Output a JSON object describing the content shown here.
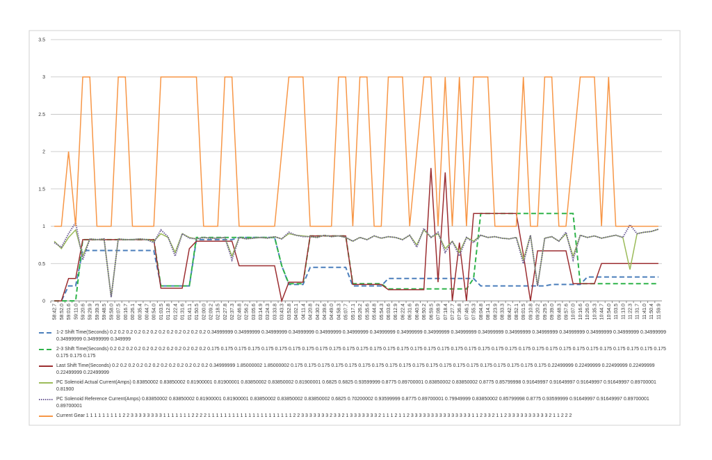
{
  "chart_data": {
    "type": "line",
    "categories": [
      "58:42.7",
      "58:52.0",
      "59:01.6",
      "59:11.0",
      "59:20.6",
      "59:29.9",
      "59:39.3",
      "59:48.5",
      "59:58.0",
      "00:07.5",
      "00:16.7",
      "00:26.1",
      "00:35.4",
      "00:44.7",
      "00:54.0",
      "01:03.5",
      "01:12.8",
      "01:22.4",
      "01:31.6",
      "01:41.1",
      "01:50.5",
      "02:00.0",
      "02:09.2",
      "02:18.5",
      "02:27.8",
      "02:37.3",
      "02:46.8",
      "02:56.2",
      "03:05.6",
      "03:14.9",
      "03:24.3",
      "03:33.8",
      "03:43.3",
      "03:52.8",
      "04:02.1",
      "04:11.4",
      "04:20.8",
      "04:30.2",
      "04:39.6",
      "04:49.0",
      "04:58.3",
      "05:07.7",
      "05:17.1",
      "05:26.2",
      "05:35.6",
      "05:44.8",
      "05:54.3",
      "06:03.6",
      "06:12.9",
      "06:22.4",
      "06:31.6",
      "06:40.9",
      "06:50.2",
      "06:59.5",
      "07:08.9",
      "07:18.4",
      "07:27.7",
      "07:36.8",
      "07:46.1",
      "07:55.3",
      "08:04.8",
      "08:14.1",
      "08:23.9",
      "08:33.3",
      "08:42.7",
      "08:52.1",
      "09:01.5",
      "09:10.8",
      "09:20.2",
      "09:29.5",
      "09:39.0",
      "09:48.3",
      "09:57.6",
      "10:07.0",
      "10:16.6",
      "10:26.0",
      "10:35.3",
      "10:44.7",
      "10:54.0",
      "11:03.5",
      "11:13.0",
      "11:22.3",
      "11:31.7",
      "11:41.0",
      "11:50.4",
      "11:59.9"
    ],
    "ylim": [
      0,
      3.5
    ],
    "yticks": [
      0,
      0.5,
      1,
      1.5,
      2,
      2.5,
      3,
      3.5
    ],
    "grid": true,
    "series": [
      {
        "name": "1-2 Shift Time(Seconds) 0.2 0.2 0.2 0.2 0.2 0.2 0.2 0.2 0.2 0.2 0.2 0.2 0.34999999 0.34999999 0.34999999 0.34999999 0.34999999 0.34999999 0.34999999 0.34999999 0.34999999 0.34999999 0.34999999 0.34999999 0.34999999 0.34999999 0.34999999 0.34999999 0.34999999 0.34999999 0.34999999 0.349999",
        "color": "#4a7ebb",
        "dash": "dashed",
        "values": [
          0,
          0,
          0.2,
          0.2,
          0.675,
          0.675,
          0.675,
          0.675,
          0.675,
          0.675,
          0.675,
          0.675,
          0.675,
          0.675,
          0.675,
          0.2,
          0.2,
          0.2,
          0.2,
          0.2,
          0.82,
          0.82,
          0.82,
          0.82,
          0.82,
          0.82,
          0.85,
          0.85,
          0.85,
          0.85,
          0.85,
          0.85,
          0.47,
          0.22,
          0.22,
          0.22,
          0.45,
          0.45,
          0.45,
          0.45,
          0.45,
          0.45,
          0.2,
          0.2,
          0.2,
          0.2,
          0.2,
          0.3,
          0.3,
          0.3,
          0.3,
          0.3,
          0.3,
          0.3,
          0.3,
          0.3,
          0.3,
          0.3,
          0.3,
          0.3,
          0.2,
          0.2,
          0.2,
          0.2,
          0.2,
          0.2,
          0.2,
          0.2,
          0.2,
          0.2,
          0.22,
          0.22,
          0.22,
          0.22,
          0.22,
          0.32,
          0.32,
          0.32,
          0.32,
          0.32,
          0.32,
          0.32,
          0.32,
          0.32,
          0.32,
          0.32
        ]
      },
      {
        "name": "2-3 Shift Time(Seconds) 0.2 0.2 0.2 0.2 0.2 0.2 0.2 0.2 0.2 0.2 0.2 0.2 0.175 0.175 0.175 0.175 0.175 0.175 0.175 0.175 0.175 0.175 0.175 0.175 0.175 0.175 0.175 0.175 0.175 0.175 0.175 0.175 0.175 0.175 0.175 0.175 0.175 0.175 0.175 0.175 0.175 0.175 0.175 0.175 0.175 0.175 0.175 0.175 0.175",
        "color": "#2fb34a",
        "dash": "dashed",
        "values": [
          0,
          0,
          0,
          0,
          0.82,
          0.82,
          0.82,
          0.82,
          0.82,
          0.82,
          0.82,
          0.82,
          0.82,
          0.82,
          0.82,
          0.2,
          0.2,
          0.2,
          0.2,
          0.2,
          0.85,
          0.85,
          0.85,
          0.85,
          0.85,
          0.85,
          0.85,
          0.85,
          0.85,
          0.85,
          0.85,
          0.85,
          0.47,
          0.23,
          0.23,
          0.23,
          0.87,
          0.87,
          0.87,
          0.87,
          0.87,
          0.87,
          0.23,
          0.23,
          0.23,
          0.23,
          0.23,
          0.16,
          0.16,
          0.16,
          0.16,
          0.16,
          0.16,
          0.16,
          0.16,
          0.16,
          0.16,
          0.16,
          0.16,
          0.3,
          1.17,
          1.17,
          1.17,
          1.17,
          1.17,
          1.17,
          1.17,
          1.17,
          1.17,
          1.17,
          1.17,
          1.17,
          1.17,
          1.17,
          0.23,
          0.23,
          0.23,
          0.23,
          0.23,
          0.23,
          0.23,
          0.23,
          0.23,
          0.23,
          0.23,
          0.23
        ]
      },
      {
        "name": "Last Shift Time(Seconds) 0.2 0.2 0.2 0.2 0.2 0.2 0.2 0.2 0.2 0.2 0.2 0.2 0.34999999 1.85000002 1.85000002 0.175 0.175 0.175 0.175 0.175 0.175 0.175 0.175 0.175 0.175 0.175 0.175 0.175 0.175 0.175 0.175 0.175 0.175 0.175 0.22499999 0.22499999 0.22499999 0.22499999 0.22499999 0.22499999",
        "color": "#9b2d30",
        "dash": "solid",
        "values": [
          0,
          0,
          0.3,
          0.3,
          0.82,
          0.82,
          0.82,
          0.82,
          0.82,
          0.82,
          0.82,
          0.82,
          0.82,
          0.82,
          0.82,
          0.17,
          0.17,
          0.17,
          0.17,
          0.7,
          0.8,
          0.8,
          0.8,
          0.8,
          0.8,
          0.8,
          0.47,
          0.47,
          0.47,
          0.47,
          0.47,
          0.47,
          0,
          0.25,
          0.25,
          0.25,
          0.87,
          0.87,
          0.87,
          0.87,
          0.87,
          0.87,
          0.22,
          0.22,
          0.22,
          0.22,
          0.22,
          0.15,
          0.15,
          0.15,
          0.15,
          0.15,
          0.15,
          1.78,
          0.25,
          1.72,
          0,
          0.78,
          0,
          1.17,
          1.17,
          1.17,
          1.17,
          1.17,
          1.17,
          1.17,
          0.62,
          0,
          0.67,
          0.67,
          0.67,
          0.67,
          0.67,
          0.23,
          0.23,
          0.23,
          0.23,
          0.5,
          0.5,
          0.5,
          0.5,
          0.5,
          0.5,
          0.5,
          0.5,
          0.5
        ]
      },
      {
        "name": "PC Solenoid Actual Current(Amps) 0.83850002 0.83850002 0.81900001 0.81900001 0.83850002 0.83850002 0.81900001 0.6825 0.6825 0.93599999 0.8775 0.89700001 0.83850002 0.83850002 0.8775 0.85799998 0.91649997 0.91649997 0.91649997 0.91649997 0.89700001 0.81900",
        "color": "#9bbb59",
        "dash": "solid",
        "values": [
          0.8,
          0.7,
          0.85,
          0.95,
          0.6,
          0.83,
          0.82,
          0.83,
          0.05,
          0.83,
          0.82,
          0.82,
          0.83,
          0.82,
          0.8,
          0.9,
          0.85,
          0.65,
          0.9,
          0.85,
          0.83,
          0.85,
          0.84,
          0.84,
          0.85,
          0.6,
          0.85,
          0.83,
          0.84,
          0.85,
          0.84,
          0.86,
          0.83,
          0.9,
          0.88,
          0.87,
          0.86,
          0.85,
          0.88,
          0.86,
          0.87,
          0.85,
          0.8,
          0.85,
          0.82,
          0.87,
          0.84,
          0.86,
          0.85,
          0.82,
          0.88,
          0.75,
          0.95,
          0.85,
          0.9,
          0.7,
          0.8,
          0.65,
          0.85,
          0.8,
          0.88,
          0.85,
          0.86,
          0.84,
          0.83,
          0.85,
          0.55,
          0.88,
          0.2,
          0.84,
          0.86,
          0.8,
          0.9,
          0.6,
          0.88,
          0.85,
          0.87,
          0.84,
          0.86,
          0.88,
          0.85,
          0.42,
          0.9,
          0.92,
          0.93,
          0.96
        ]
      },
      {
        "name": "PC Solenoid Reference Current(Amps) 0.83850002 0.83850002 0.81900001 0.81900001 0.83850002 0.83850002 0.83850002 0.6825 0.70200002 0.93599999 0.8775 0.89700001 0.79949999 0.83850002 0.85799998 0.8775 0.93599999 0.91649997 0.91649997 0.89700001 0.89700001",
        "color": "#6b5b95",
        "dash": "dotted",
        "values": [
          0.78,
          0.72,
          0.9,
          1.05,
          0.55,
          0.83,
          0.82,
          0.83,
          0.05,
          0.83,
          0.82,
          0.82,
          0.83,
          0.82,
          0.78,
          0.95,
          0.86,
          0.6,
          0.9,
          0.84,
          0.83,
          0.85,
          0.84,
          0.84,
          0.85,
          0.55,
          0.85,
          0.83,
          0.84,
          0.85,
          0.84,
          0.86,
          0.83,
          0.92,
          0.88,
          0.86,
          0.86,
          0.85,
          0.88,
          0.86,
          0.87,
          0.85,
          0.8,
          0.85,
          0.82,
          0.87,
          0.84,
          0.86,
          0.85,
          0.82,
          0.88,
          0.72,
          0.97,
          0.85,
          0.92,
          0.65,
          0.8,
          0.6,
          0.85,
          0.78,
          0.88,
          0.85,
          0.86,
          0.84,
          0.83,
          0.85,
          0.5,
          0.88,
          0.2,
          0.84,
          0.86,
          0.8,
          0.92,
          0.55,
          0.88,
          0.85,
          0.87,
          0.84,
          0.86,
          0.88,
          0.85,
          1.02,
          0.9,
          0.92,
          0.93,
          0.96
        ]
      },
      {
        "name": "Current Gear 1 1 1 1 1 1 1 1 1 2 2 3 3 3 3 3 3 3 3 1 1 1 1 1 1 1 2 2 2 2 1 1 1 1 1 1 1 1 1 1 1 1 1 1 1 1 1 1 1 1 1 2 2 3 3 3 3 3 3 3 2 3 3 2 1 3 3 3 3 3 3 3 2 1 1 1 2 1 1 2 3 3 3 3 3 3 3 3 3 3 3 3 3 3 3 1 1 2 3 3 2 1 1 2 3 3 3 3 3 3 3 3 3 3 2 1 1 2 2 2",
        "color": "#f79646",
        "dash": "solid",
        "values": [
          1,
          1,
          2,
          1,
          3,
          3,
          1,
          1,
          1,
          3,
          3,
          1,
          1,
          1,
          1,
          3,
          3,
          3,
          3,
          3,
          3,
          1,
          1,
          1,
          3,
          3,
          1,
          1,
          1,
          1,
          1,
          1,
          2,
          3,
          3,
          3,
          1,
          1,
          1,
          1,
          3,
          3,
          1,
          3,
          3,
          1,
          1,
          3,
          3,
          3,
          1,
          2,
          3,
          3,
          1,
          3,
          1,
          3,
          1,
          3,
          3,
          3,
          1,
          1,
          1,
          1,
          3,
          1,
          1,
          3,
          3,
          1,
          1,
          2,
          3,
          3,
          3,
          1,
          3,
          1,
          1,
          1,
          1,
          1,
          1,
          1
        ]
      }
    ]
  }
}
